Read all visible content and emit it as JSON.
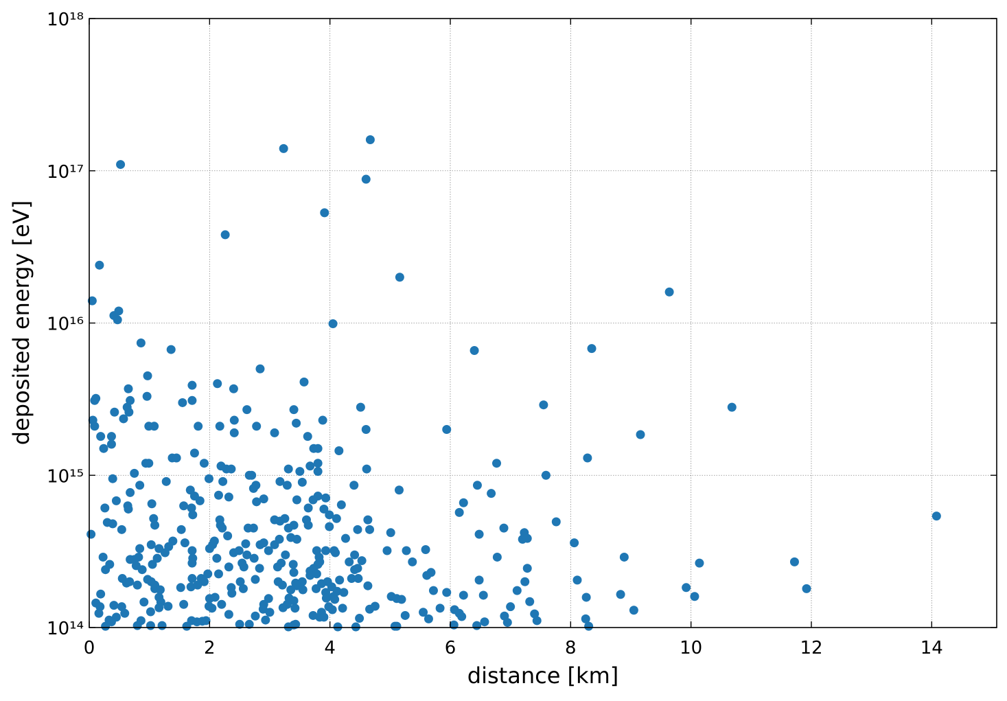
{
  "chart_data": {
    "type": "scatter",
    "xlabel": "distance [km]",
    "ylabel": "deposited energy [eV]",
    "color": "#1f77b4",
    "yscale": "log",
    "grid": true,
    "xlim": [
      0,
      15.08
    ],
    "xticks": [
      0,
      2,
      4,
      6,
      8,
      10,
      12,
      14
    ],
    "ylim": [
      100000000000000.0,
      1e+18
    ],
    "yticks": [
      {
        "value": 100000000000000.0,
        "label": "10¹⁴"
      },
      {
        "value": 1000000000000000.0,
        "label": "10¹⁵"
      },
      {
        "value": 1e+16,
        "label": "10¹⁶"
      },
      {
        "value": 1e+17,
        "label": "10¹⁷"
      },
      {
        "value": 1e+18,
        "label": "10¹⁸"
      }
    ],
    "x": [
      0.52,
      3.23,
      4.67,
      4.6,
      3.91,
      2.26,
      0.17,
      5.16,
      9.64,
      0.05,
      0.49,
      0.41,
      0.47,
      4.05,
      0.86,
      1.36,
      6.4,
      8.35,
      2.84,
      3.57,
      0.97,
      0.65,
      2.13,
      2.4,
      1.71,
      0.09,
      0.11,
      0.68,
      0.96,
      1.55,
      1.71,
      4.51,
      7.55,
      10.68,
      2.62,
      3.4,
      0.66,
      0.42,
      0.63,
      0.57,
      0.06,
      0.09,
      0.99,
      1.08,
      1.81,
      2.17,
      2.41,
      2.41,
      2.78,
      3.44,
      3.88,
      4.6,
      5.94,
      9.16,
      0.19,
      0.37,
      0.37,
      0.24,
      3.08,
      3.63,
      3.73,
      3.8,
      4.15,
      1.75,
      3.8,
      3.67,
      3.31,
      3.5,
      3.8,
      4.61,
      6.77,
      8.28,
      7.59,
      1.38,
      1.45,
      0.94,
      0.99,
      1.91,
      0.75,
      0.39,
      1.99,
      2.19,
      2.28,
      2.36,
      2.7,
      2.66,
      2.22,
      1.28,
      0.84,
      2.77,
      2.73,
      3.17,
      3.29,
      3.54,
      4.4,
      5.15,
      6.45,
      0.68,
      1.68,
      1.75,
      2.15,
      2.32,
      2.9,
      2.78,
      3.8,
      3.93,
      6.68,
      3.45,
      3.72,
      0.45,
      1.84,
      1.04,
      0.64,
      1.57,
      1.7,
      0.65,
      0.26,
      3.64,
      3.9,
      4.19,
      6.22,
      6.15,
      1.72,
      3.99,
      1.07,
      2.17,
      3.08,
      3.17,
      3.25,
      3.61,
      4.11,
      4.63,
      0.3,
      0.39,
      1.09,
      2.18,
      3.4,
      3.64,
      7.76,
      14.08,
      0.03,
      0.54,
      1.53,
      2.21,
      2.64,
      2.73,
      3.31,
      3.99,
      4.46,
      4.66,
      5.01,
      6.48,
      6.89,
      7.23,
      2.3,
      1.39,
      1.59,
      2.08,
      2.05,
      2.6,
      2.84,
      2.9,
      3.08,
      3.16,
      3.35,
      3.45,
      4.26,
      7.2,
      7.28,
      8.06,
      1.03,
      0.84,
      1.16,
      1.32,
      2.0,
      2.4,
      2.49,
      2.98,
      3.78,
      3.93,
      4.07,
      4.09,
      4.95,
      5.27,
      5.59,
      0.23,
      1.26,
      1.71,
      1.72,
      2.12,
      2.62,
      2.74,
      1.13,
      0.82,
      0.68,
      0.75,
      3.82,
      3.26,
      4.41,
      4.32,
      4.53,
      5.37,
      6.78,
      8.89,
      10.14,
      11.72,
      0.34,
      0.78,
      1.05,
      1.71,
      2.54,
      2.57,
      3.13,
      3.19,
      3.39,
      3.8,
      3.83,
      0.27,
      0.88,
      2.32,
      2.83,
      3.73,
      3.67,
      3.4,
      3.67,
      3.78,
      4.41,
      4.46,
      7.28,
      5.68,
      5.61,
      1.97,
      2.15,
      2.76,
      1.71,
      1.86,
      0.97,
      0.55,
      0.62,
      0.67,
      1.03,
      1.91,
      2.51,
      3.14,
      3.21,
      3.43,
      3.54,
      3.96,
      4.16,
      4.36,
      4.47,
      6.48,
      7.24,
      8.11,
      0.8,
      1.09,
      3.45,
      3.86,
      4.03,
      4.63,
      9.92,
      11.92,
      0.19,
      1.09,
      1.18,
      1.52,
      1.69,
      1.8,
      2.36,
      2.37,
      2.56,
      3.35,
      3.55,
      3.77,
      3.93,
      4.12,
      4.23,
      5.72,
      5.94,
      7.11,
      8.26,
      8.83,
      10.06,
      5.02,
      5.11,
      5.19,
      6.22,
      6.55,
      1.16,
      2.0,
      2.09,
      2.98,
      3.32,
      3.4,
      3.94,
      4.06,
      4.08,
      0.11,
      0.91,
      1.19,
      1.57,
      2.2,
      2.9,
      3.29,
      7.32,
      0.41,
      0.54,
      0.18,
      1.16,
      1.31,
      1.99,
      2.04,
      2.89,
      3.22,
      3.42,
      3.98,
      4.04,
      4.21,
      4.66,
      4.75,
      5.83,
      6.07,
      7.0,
      9.05,
      0.59,
      1.02,
      3.0,
      2.32,
      3.86,
      5.55,
      6.15,
      6.19,
      7.4,
      0.16,
      0.45,
      5.25,
      6.9,
      2.76,
      3.83,
      3.9,
      4.49,
      3.72,
      0.33,
      0.37,
      0.86,
      1.7,
      1.79,
      1.88,
      1.94,
      2.93,
      5.64,
      6.57,
      6.95,
      7.44,
      8.25,
      0.8,
      1.21,
      0.27,
      1.02,
      2.5,
      2.66,
      3.4,
      3.43,
      4.13,
      4.43,
      5.08,
      5.11,
      6.06,
      6.44,
      8.3,
      1.62,
      3.31
    ],
    "values": [
      1.1e+17,
      1.4e+17,
      1.6e+17,
      8.8e+16,
      5.3e+16,
      3.8e+16,
      2.4e+16,
      2e+16,
      1.6e+16,
      1.4e+16,
      1.2e+16,
      1.12e+16,
      1.05e+16,
      9900000000000000.0,
      7400000000000000.0,
      6700000000000000.0,
      6600000000000000.0,
      6800000000000000.0,
      5000000000000000.0,
      4100000000000000.0,
      4500000000000000.0,
      3700000000000000.0,
      4000000000000000.0,
      3700000000000000.0,
      3900000000000000.0,
      3100000000000000.0,
      3200000000000000.0,
      3100000000000000.0,
      3300000000000000.0,
      3000000000000000.0,
      3100000000000000.0,
      2800000000000000.0,
      2900000000000000.0,
      2800000000000000.0,
      2700000000000000.0,
      2700000000000000.0,
      2600000000000000.0,
      2600000000000000.0,
      2800000000000000.0,
      2350000000000000.0,
      2300000000000000.0,
      2100000000000000.0,
      2100000000000000.0,
      2100000000000000.0,
      2100000000000000.0,
      2100000000000000.0,
      2300000000000000.0,
      1900000000000000.0,
      2100000000000000.0,
      2200000000000000.0,
      2300000000000000.0,
      2000000000000000.0,
      2000000000000000.0,
      1850000000000000.0,
      1800000000000000.0,
      1800000000000000.0,
      1600000000000000.0,
      1500000000000000.0,
      1900000000000000.0,
      1800000000000000.0,
      1500000000000000.0,
      1500000000000000.0,
      1450000000000000.0,
      1400000000000000.0,
      1200000000000000.0,
      1150000000000000.0,
      1100000000000000.0,
      1060000000000000.0,
      1060000000000000.0,
      1100000000000000.0,
      1200000000000000.0,
      1300000000000000.0,
      1000000000000000.0,
      1300000000000000.0,
      1300000000000000.0,
      1200000000000000.0,
      1200000000000000.0,
      1200000000000000.0,
      1030000000000000.0,
      950000000000000.0,
      950000000000000.0,
      1150000000000000.0,
      1100000000000000.0,
      1100000000000000.0,
      1000000000000000.0,
      1000000000000000.0,
      910000000000000.0,
      910000000000000.0,
      860000000000000.0,
      860000000000000.0,
      820000000000000.0,
      910000000000000.0,
      860000000000000.0,
      900000000000000.0,
      860000000000000.0,
      800000000000000.0,
      860000000000000.0,
      770000000000000.0,
      800000000000000.0,
      730000000000000.0,
      740000000000000.0,
      720000000000000.0,
      700000000000000.0,
      670000000000000.0,
      730000000000000.0,
      710000000000000.0,
      760000000000000.0,
      690000000000000.0,
      690000000000000.0,
      680000000000000.0,
      680000000000000.0,
      650000000000000.0,
      630000000000000.0,
      630000000000000.0,
      610000000000000.0,
      600000000000000.0,
      610000000000000.0,
      610000000000000.0,
      600000000000000.0,
      640000000000000.0,
      660000000000000.0,
      570000000000000.0,
      550000000000000.0,
      550000000000000.0,
      520000000000000.0,
      510000000000000.0,
      510000000000000.0,
      500000000000000.0,
      520000000000000.0,
      510000000000000.0,
      520000000000000.0,
      510000000000000.0,
      490000000000000.0,
      480000000000000.0,
      470000000000000.0,
      470000000000000.0,
      470000000000000.0,
      470000000000000.0,
      495000000000000.0,
      540000000000000.0,
      410000000000000.0,
      440000000000000.0,
      440000000000000.0,
      450000000000000.0,
      450000000000000.0,
      450000000000000.0,
      450000000000000.0,
      460000000000000.0,
      440000000000000.0,
      440000000000000.0,
      420000000000000.0,
      410000000000000.0,
      450000000000000.0,
      420000000000000.0,
      400000000000000.0,
      370000000000000.0,
      360000000000000.0,
      370000000000000.0,
      350000000000000.0,
      355000000000000.0,
      350000000000000.0,
      360000000000000.0,
      350000000000000.0,
      380000000000000.0,
      390000000000000.0,
      380000000000000.0,
      385000000000000.0,
      380000000000000.0,
      385000000000000.0,
      360000000000000.0,
      350000000000000.0,
      330000000000000.0,
      330000000000000.0,
      340000000000000.0,
      330000000000000.0,
      310000000000000.0,
      320000000000000.0,
      320000000000000.0,
      320000000000000.0,
      320000000000000.0,
      320000000000000.0,
      310000000000000.0,
      320000000000000.0,
      320000000000000.0,
      325000000000000.0,
      290000000000000.0,
      310000000000000.0,
      320000000000000.0,
      285000000000000.0,
      285000000000000.0,
      300000000000000.0,
      285000000000000.0,
      285000000000000.0,
      290000000000000.0,
      280000000000000.0,
      280000000000000.0,
      290000000000000.0,
      300000000000000.0,
      300000000000000.0,
      270000000000000.0,
      275000000000000.0,
      270000000000000.0,
      290000000000000.0,
      290000000000000.0,
      265000000000000.0,
      270000000000000.0,
      260000000000000.0,
      255000000000000.0,
      260000000000000.0,
      265000000000000.0,
      265000000000000.0,
      250000000000000.0,
      250000000000000.0,
      265000000000000.0,
      260000000000000.0,
      260000000000000.0,
      270000000000000.0,
      240000000000000.0,
      240000000000000.0,
      250000000000000.0,
      245000000000000.0,
      245000000000000.0,
      235000000000000.0,
      230000000000000.0,
      220000000000000.0,
      225000000000000.0,
      240000000000000.0,
      245000000000000.0,
      245000000000000.0,
      230000000000000.0,
      220000000000000.0,
      225000000000000.0,
      225000000000000.0,
      207000000000000.0,
      210000000000000.0,
      210000000000000.0,
      207000000000000.0,
      210000000000000.0,
      196000000000000.0,
      200000000000000.0,
      200000000000000.0,
      200000000000000.0,
      200000000000000.0,
      200000000000000.0,
      190000000000000.0,
      196000000000000.0,
      200000000000000.0,
      200000000000000.0,
      205000000000000.0,
      210000000000000.0,
      210000000000000.0,
      205000000000000.0,
      200000000000000.0,
      205000000000000.0,
      190000000000000.0,
      190000000000000.0,
      188000000000000.0,
      194000000000000.0,
      185000000000000.0,
      188000000000000.0,
      183000000000000.0,
      180000000000000.0,
      166000000000000.0,
      180000000000000.0,
      177000000000000.0,
      183000000000000.0,
      185000000000000.0,
      190000000000000.0,
      183000000000000.0,
      168000000000000.0,
      180000000000000.0,
      177000000000000.0,
      177000000000000.0,
      180000000000000.0,
      170000000000000.0,
      173000000000000.0,
      170000000000000.0,
      175000000000000.0,
      170000000000000.0,
      175000000000000.0,
      158000000000000.0,
      165000000000000.0,
      160000000000000.0,
      160000000000000.0,
      155000000000000.0,
      153000000000000.0,
      163000000000000.0,
      163000000000000.0,
      158000000000000.0,
      155000000000000.0,
      158000000000000.0,
      155000000000000.0,
      156000000000000.0,
      150000000000000.0,
      156000000000000.0,
      160000000000000.0,
      153000000000000.0,
      145000000000000.0,
      147000000000000.0,
      147000000000000.0,
      142000000000000.0,
      142000000000000.0,
      142000000000000.0,
      142000000000000.0,
      148000000000000.0,
      140000000000000.0,
      137000000000000.0,
      137000000000000.0,
      135000000000000.0,
      138000000000000.0,
      138000000000000.0,
      134000000000000.0,
      132000000000000.0,
      135000000000000.0,
      134000000000000.0,
      137000000000000.0,
      131000000000000.0,
      134000000000000.0,
      132000000000000.0,
      138000000000000.0,
      134000000000000.0,
      131000000000000.0,
      137000000000000.0,
      130000000000000.0,
      124000000000000.0,
      127000000000000.0,
      126000000000000.0,
      122000000000000.0,
      126000000000000.0,
      126000000000000.0,
      124000000000000.0,
      118000000000000.0,
      123000000000000.0,
      124000000000000.0,
      117000000000000.0,
      120000000000000.0,
      119000000000000.0,
      119000000000000.0,
      117000000000000.0,
      117000000000000.0,
      115000000000000.0,
      120000000000000.0,
      112000000000000.0,
      109000000000000.0,
      111000000000000.0,
      111000000000000.0,
      109000000000000.0,
      110000000000000.0,
      111000000000000.0,
      112000000000000.0,
      114000000000000.0,
      109000000000000.0,
      108000000000000.0,
      111000000000000.0,
      114000000000000.0,
      103000000000000.0,
      103000000000000.0,
      102000000000000.0,
      103000000000000.0,
      105000000000000.0,
      105000000000000.0,
      104000000000000.0,
      105000000000000.0,
      101000000000000.0,
      101000000000000.0,
      102000000000000.0,
      102000000000000.0,
      104000000000000.0,
      103000000000000.0,
      102000000000000.0,
      102000000000000.0,
      101000000000000.0
    ]
  }
}
